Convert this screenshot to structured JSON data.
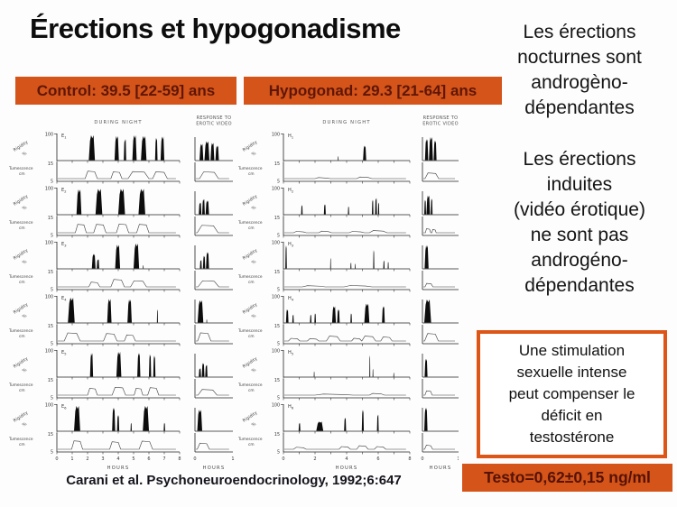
{
  "title": "Érections et hypogonadisme",
  "banners": {
    "control": "Control: 39.5 [22-59] ans",
    "hypogonad": "Hypogonad: 29.3 [21-64] ans"
  },
  "right_column": {
    "nocturnal_note": "Les érections\nnocturnes sont\nandrogèno-\ndépendantes",
    "induced_note": "Les érections\ninduites\n(vidéo érotique)\nne sont pas\nandrogéno-\ndépendantes",
    "stimulation_box": "Une stimulation\nsexuelle intense\npeut compenser le\ndéficit en\ntestostérone",
    "testo_badge": "Testo=0,62±0,15 ng/ml"
  },
  "citation": "Carani et al. Psychoneuroendocrinology, 1992;6:647",
  "colors": {
    "accent_orange": "#d4541a",
    "banner_text": "#5e1606",
    "box_border": "#dd5517",
    "ink": "#0d0d0d"
  },
  "chart_data": {
    "type": "strip-recordings",
    "description": "Penile rigidity (%) and tumescence (cm) traces recorded during night (0-8 h) and in response to erotic video (0-1 h); eugonadal controls E1-E6 vs hypogonadal men H1-H6. Spikes/bumps given as [start, width, height] fractions of plot width/full-scale.",
    "axis": {
      "rigidity_label": "Rigidity",
      "rigidity_unit": "%",
      "ytick_rigidity": "100",
      "tumescence_label": "Tumescence",
      "tumescence_unit": "cm",
      "ytick_tum_top": "15",
      "ytick_tum_bottom": "5",
      "xlabel": "HOURS",
      "night_hours_range": [
        0,
        8
      ],
      "video_hours_range": [
        0,
        1
      ],
      "video_tick_labels": [
        0,
        1
      ]
    },
    "panels": [
      {
        "id": "control",
        "header_night": "DURING NIGHT",
        "header_video": "RESPONSE TO\nEROTIC VIDEO",
        "night_tick_labels": [
          0,
          1,
          2,
          3,
          4,
          5,
          6,
          7,
          8
        ],
        "rows": [
          {
            "label": "E1",
            "night_spikes": [
              [
                0.26,
                0.05,
                0.95
              ],
              [
                0.47,
                0.035,
                0.92
              ],
              [
                0.545,
                0.02,
                0.8
              ],
              [
                0.615,
                0.035,
                0.95
              ],
              [
                0.685,
                0.045,
                0.92
              ],
              [
                0.8,
                0.02,
                0.85
              ],
              [
                0.845,
                0.03,
                0.9
              ]
            ],
            "night_tum": [
              [
                0.23,
                0.1,
                0.55
              ],
              [
                0.44,
                0.09,
                0.5
              ],
              [
                0.58,
                0.17,
                0.52
              ],
              [
                0.78,
                0.12,
                0.5
              ]
            ],
            "video_spikes": [
              [
                0.12,
                0.1,
                0.62
              ],
              [
                0.25,
                0.13,
                0.72
              ],
              [
                0.41,
                0.1,
                0.66
              ],
              [
                0.54,
                0.09,
                0.55
              ]
            ],
            "video_tum": [
              [
                0.12,
                0.5,
                0.5
              ]
            ]
          },
          {
            "label": "E2",
            "night_spikes": [
              [
                0.16,
                0.04,
                0.95
              ],
              [
                0.315,
                0.055,
                0.97
              ],
              [
                0.5,
                0.055,
                0.97
              ],
              [
                0.665,
                0.055,
                0.97
              ]
            ],
            "night_tum": [
              [
                0.15,
                0.09,
                0.62
              ],
              [
                0.3,
                0.1,
                0.62
              ],
              [
                0.485,
                0.1,
                0.64
              ],
              [
                0.65,
                0.1,
                0.62
              ]
            ],
            "video_spikes": [
              [
                0.1,
                0.07,
                0.45
              ],
              [
                0.19,
                0.07,
                0.58
              ],
              [
                0.28,
                0.09,
                0.52
              ]
            ],
            "video_tum": [
              [
                0.06,
                0.55,
                0.55
              ]
            ]
          },
          {
            "label": "E3",
            "night_spikes": [
              [
                0.285,
                0.03,
                0.55
              ],
              [
                0.325,
                0.02,
                0.35
              ],
              [
                0.475,
                0.04,
                0.9
              ],
              [
                0.625,
                0.045,
                0.95
              ],
              [
                0.7,
                0.006,
                0.12
              ]
            ],
            "night_tum": [
              [
                0.26,
                0.09,
                0.35
              ],
              [
                0.44,
                0.11,
                0.55
              ],
              [
                0.6,
                0.13,
                0.45
              ]
            ],
            "video_spikes": [
              [
                0.13,
                0.05,
                0.32
              ],
              [
                0.21,
                0.06,
                0.48
              ],
              [
                0.29,
                0.08,
                0.62
              ]
            ],
            "video_tum": [
              [
                0.08,
                0.55,
                0.45
              ]
            ]
          },
          {
            "label": "E4",
            "night_spikes": [
              [
                0.09,
                0.055,
                0.95
              ],
              [
                0.41,
                0.035,
                0.9
              ],
              [
                0.575,
                0.035,
                0.88
              ],
              [
                0.815,
                0.008,
                0.5
              ]
            ],
            "night_tum": [
              [
                0.06,
                0.13,
                0.6
              ],
              [
                0.38,
                0.11,
                0.55
              ],
              [
                0.55,
                0.09,
                0.45
              ]
            ],
            "video_spikes": [
              [
                0.07,
                0.15,
                0.85
              ],
              [
                0.3,
                0.02,
                0.12
              ]
            ],
            "video_tum": [
              [
                0.07,
                0.35,
                0.6
              ]
            ]
          },
          {
            "label": "E5",
            "night_spikes": [
              [
                0.27,
                0.025,
                0.9
              ],
              [
                0.485,
                0.04,
                0.95
              ],
              [
                0.655,
                0.025,
                0.9
              ],
              [
                0.75,
                0.018,
                0.85
              ],
              [
                0.785,
                0.018,
                0.8
              ]
            ],
            "night_tum": [
              [
                0.25,
                0.08,
                0.5
              ],
              [
                0.45,
                0.11,
                0.58
              ],
              [
                0.63,
                0.07,
                0.5
              ],
              [
                0.74,
                0.09,
                0.55
              ]
            ],
            "video_spikes": [
              [
                0.1,
                0.06,
                0.32
              ],
              [
                0.18,
                0.07,
                0.52
              ],
              [
                0.27,
                0.06,
                0.45
              ]
            ],
            "video_tum": [
              [
                0.08,
                0.5,
                0.42
              ]
            ]
          },
          {
            "label": "E6",
            "night_spikes": [
              [
                0.14,
                0.05,
                0.95
              ],
              [
                0.45,
                0.025,
                0.88
              ],
              [
                0.49,
                0.018,
                0.6
              ],
              [
                0.6,
                0.01,
                0.3
              ],
              [
                0.7,
                0.05,
                0.95
              ],
              [
                0.87,
                0.012,
                0.3
              ]
            ],
            "night_tum": [
              [
                0.12,
                0.09,
                0.62
              ],
              [
                0.43,
                0.09,
                0.55
              ],
              [
                0.67,
                0.11,
                0.6
              ]
            ],
            "video_spikes": [
              [
                0.06,
                0.13,
                0.8
              ]
            ],
            "video_tum": [
              [
                0.06,
                0.32,
                0.45
              ]
            ]
          }
        ]
      },
      {
        "id": "hypogonad",
        "header_night": "DURING NIGHT",
        "header_video": "RESPONSE TO\nEROTIC VIDEO",
        "night_tick_labels": [
          0,
          2,
          4,
          6,
          8
        ],
        "rows": [
          {
            "label": "H1",
            "night_spikes": [
              [
                0.43,
                0.006,
                0.15
              ],
              [
                0.63,
                0.025,
                0.55
              ]
            ],
            "night_tum": [
              [
                0.25,
                0.12,
                0.08
              ],
              [
                0.58,
                0.12,
                0.12
              ]
            ],
            "video_spikes": [
              [
                0.07,
                0.09,
                0.8
              ],
              [
                0.18,
                0.11,
                0.88
              ],
              [
                0.31,
                0.08,
                0.75
              ]
            ],
            "video_tum": [
              [
                0.07,
                0.38,
                0.42
              ]
            ]
          },
          {
            "label": "H2",
            "night_spikes": [
              [
                0.14,
                0.012,
                0.35
              ],
              [
                0.32,
                0.015,
                0.38
              ],
              [
                0.51,
                0.01,
                0.3
              ],
              [
                0.7,
                0.012,
                0.55
              ],
              [
                0.725,
                0.015,
                0.62
              ],
              [
                0.748,
                0.01,
                0.45
              ]
            ],
            "night_tum": [
              [
                0.08,
                0.1,
                0.1
              ],
              [
                0.28,
                0.1,
                0.12
              ],
              [
                0.52,
                0.12,
                0.1
              ],
              [
                0.68,
                0.14,
                0.16
              ]
            ],
            "video_spikes": [
              [
                0.05,
                0.05,
                0.55
              ],
              [
                0.11,
                0.1,
                0.72
              ],
              [
                0.23,
                0.05,
                0.6
              ]
            ],
            "video_tum": [
              [
                0.08,
                0.15,
                0.3
              ],
              [
                0.26,
                0.12,
                0.24
              ]
            ]
          },
          {
            "label": "H3",
            "night_spikes": [
              [
                0.015,
                0.012,
                0.88
              ],
              [
                0.37,
                0.005,
                0.4
              ],
              [
                0.53,
                0.008,
                0.22
              ],
              [
                0.565,
                0.006,
                0.18
              ],
              [
                0.71,
                0.009,
                0.7
              ],
              [
                0.79,
                0.01,
                0.3
              ],
              [
                0.825,
                0.008,
                0.25
              ]
            ],
            "night_tum": [
              [
                0.15,
                0.18,
                0.09
              ],
              [
                0.48,
                0.22,
                0.1
              ]
            ],
            "video_spikes": [
              [
                0.06,
                0.11,
                0.88
              ]
            ],
            "video_tum": [
              [
                0.07,
                0.22,
                0.26
              ]
            ]
          },
          {
            "label": "H4",
            "night_spikes": [
              [
                0.02,
                0.02,
                0.5
              ],
              [
                0.07,
                0.012,
                0.3
              ],
              [
                0.21,
                0.012,
                0.3
              ],
              [
                0.245,
                0.012,
                0.35
              ],
              [
                0.385,
                0.03,
                0.62
              ],
              [
                0.425,
                0.02,
                0.5
              ],
              [
                0.53,
                0.012,
                0.35
              ],
              [
                0.64,
                0.04,
                0.72
              ],
              [
                0.78,
                0.022,
                0.62
              ]
            ],
            "night_tum": [
              [
                0.04,
                0.09,
                0.2
              ],
              [
                0.19,
                0.09,
                0.18
              ],
              [
                0.34,
                0.11,
                0.36
              ],
              [
                0.54,
                0.08,
                0.2
              ],
              [
                0.62,
                0.11,
                0.36
              ],
              [
                0.77,
                0.09,
                0.3
              ]
            ],
            "video_spikes": [
              [
                0.05,
                0.19,
                0.88
              ]
            ],
            "video_tum": [
              [
                0.06,
                0.38,
                0.55
              ]
            ]
          },
          {
            "label": "H5",
            "night_spikes": [
              [
                0.24,
                0.005,
                0.2
              ],
              [
                0.68,
                0.007,
                0.82
              ],
              [
                0.705,
                0.005,
                0.3
              ],
              [
                0.87,
                0.005,
                0.15
              ]
            ],
            "night_tum": [
              [
                0.25,
                0.3,
                0.08
              ],
              [
                0.68,
                0.12,
                0.13
              ]
            ],
            "video_spikes": [
              [
                0.06,
                0.08,
                0.68
              ]
            ],
            "video_tum": [
              [
                0.07,
                0.2,
                0.32
              ]
            ]
          },
          {
            "label": "H6",
            "night_spikes": [
              [
                0.12,
                0.014,
                0.3
              ],
              [
                0.26,
                0.055,
                0.35
              ],
              [
                0.48,
                0.016,
                0.5
              ],
              [
                0.62,
                0.016,
                0.8
              ],
              [
                0.74,
                0.014,
                0.62
              ]
            ],
            "night_tum": [
              [
                0.08,
                0.1,
                0.15
              ],
              [
                0.44,
                0.09,
                0.2
              ],
              [
                0.58,
                0.09,
                0.26
              ],
              [
                0.72,
                0.09,
                0.2
              ]
            ],
            "video_spikes": [
              [
                0.05,
                0.09,
                0.88
              ]
            ],
            "video_tum": [
              [
                0.06,
                0.22,
                0.3
              ]
            ]
          }
        ]
      }
    ]
  }
}
